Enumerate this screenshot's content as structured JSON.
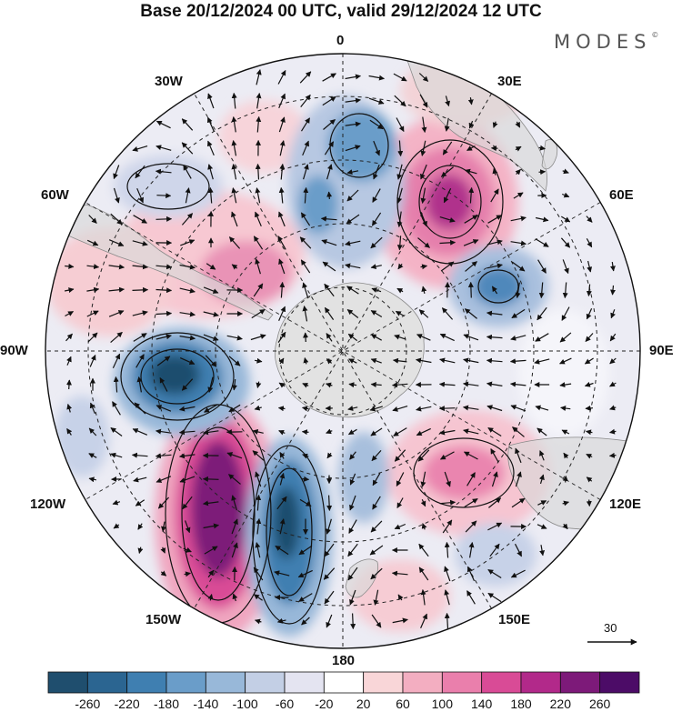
{
  "title": "Base 20/12/2024 00 UTC, valid 29/12/2024 12 UTC",
  "brand": "MODES",
  "brand_mark": "©",
  "longitude_labels": {
    "lon_0": "0",
    "lon_30e": "30E",
    "lon_60e": "60E",
    "lon_90e": "90E",
    "lon_120e": "120E",
    "lon_150e": "150E",
    "lon_180": "180",
    "lon_150w": "150W",
    "lon_120w": "120W",
    "lon_90w": "90W",
    "lon_60w": "60W",
    "lon_30w": "30W"
  },
  "vector_reference": {
    "label": "30"
  },
  "colorbar": {
    "ticks": [
      "-260",
      "-220",
      "-180",
      "-140",
      "-100",
      "-60",
      "-20",
      "20",
      "60",
      "100",
      "140",
      "180",
      "220",
      "260"
    ],
    "colors": [
      "#1f4e6e",
      "#2b6591",
      "#3f7fb1",
      "#6a9dc9",
      "#98b8d9",
      "#c3cfe5",
      "#e4e4f1",
      "#ffffff",
      "#f9d6d8",
      "#f3aec1",
      "#ea7fac",
      "#d94b96",
      "#b2298a",
      "#7d1a79",
      "#4c0c67"
    ]
  },
  "colors": {
    "land": "#e2e2e2",
    "coast": "#8a8a8a",
    "contour": "#111111"
  }
}
